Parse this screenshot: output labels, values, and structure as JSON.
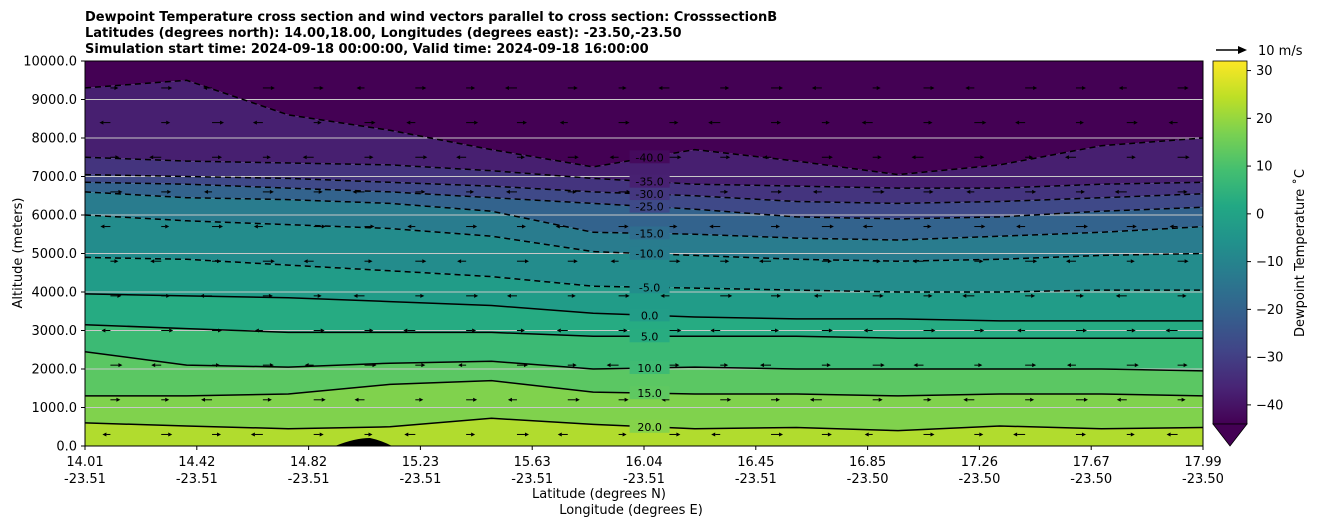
{
  "chart_data": {
    "type": "heatmap",
    "subtype": "filled-contour cross section with contour lines and wind vectors",
    "title_lines": [
      "Dewpoint Temperature cross section and wind vectors parallel to cross section: CrosssectionB",
      "Latitudes (degrees north): 14.00,18.00, Longitudes (degrees east): -23.50,-23.50",
      "Simulation start time: 2024-09-18 00:00:00, Valid time: 2024-09-18 16:00:00"
    ],
    "ylabel": "Altitude (meters)",
    "xlabel_lines": [
      "Latitude (degrees N)",
      "Longitude (degrees E)"
    ],
    "colorbar_label": "Dewpoint Temperature ˚C",
    "quiver_key_label": "10 m/s",
    "ylim": [
      0,
      10000
    ],
    "yticks": [
      "0.0",
      "1000.0",
      "2000.0",
      "3000.0",
      "4000.0",
      "5000.0",
      "6000.0",
      "7000.0",
      "8000.0",
      "9000.0",
      "10000.0"
    ],
    "xlim": [
      0,
      1
    ],
    "xticks": [
      {
        "pos": 0.0,
        "lat": "14.01",
        "lon": "-23.51"
      },
      {
        "pos": 0.1,
        "lat": "14.42",
        "lon": "-23.51"
      },
      {
        "pos": 0.2,
        "lat": "14.82",
        "lon": "-23.51"
      },
      {
        "pos": 0.3,
        "lat": "15.23",
        "lon": "-23.51"
      },
      {
        "pos": 0.4,
        "lat": "15.63",
        "lon": "-23.51"
      },
      {
        "pos": 0.5,
        "lat": "16.04",
        "lon": "-23.51"
      },
      {
        "pos": 0.6,
        "lat": "16.45",
        "lon": "-23.51"
      },
      {
        "pos": 0.7,
        "lat": "16.85",
        "lon": "-23.50"
      },
      {
        "pos": 0.8,
        "lat": "17.26",
        "lon": "-23.50"
      },
      {
        "pos": 0.9,
        "lat": "17.67",
        "lon": "-23.50"
      },
      {
        "pos": 1.0,
        "lat": "17.99",
        "lon": "-23.50"
      }
    ],
    "colorbar_range": [
      -44,
      32
    ],
    "colorbar_ticks": [
      "30",
      "20",
      "10",
      "0",
      "−10",
      "−20",
      "−30",
      "−40"
    ],
    "colorbar_tick_values": [
      30,
      20,
      10,
      0,
      -10,
      -20,
      -30,
      -40
    ],
    "colormap_stops": [
      "#440154",
      "#482475",
      "#414487",
      "#355f8d",
      "#2a788e",
      "#21918c",
      "#22a884",
      "#44bf70",
      "#7ad151",
      "#bddf26",
      "#fde725"
    ],
    "grid": "horizontal",
    "contours": [
      {
        "level": 20,
        "label": "20.0",
        "style": "solid",
        "heights": [
          600,
          520,
          450,
          500,
          720,
          560,
          450,
          480,
          400,
          520,
          450,
          480
        ]
      },
      {
        "level": 15,
        "label": "15.0",
        "style": "solid",
        "heights": [
          1300,
          1300,
          1350,
          1600,
          1700,
          1400,
          1350,
          1350,
          1300,
          1350,
          1350,
          1300
        ]
      },
      {
        "level": 10,
        "label": "10.0",
        "style": "solid",
        "heights": [
          2450,
          2100,
          2050,
          2150,
          2200,
          2000,
          2050,
          2000,
          2000,
          2000,
          2000,
          1950
        ]
      },
      {
        "level": 5,
        "label": "5.0",
        "style": "solid",
        "heights": [
          3150,
          3050,
          2950,
          2950,
          2950,
          2850,
          2850,
          2850,
          2800,
          2800,
          2800,
          2800
        ]
      },
      {
        "level": 0,
        "label": "0.0",
        "style": "solid",
        "heights": [
          3950,
          3900,
          3850,
          3750,
          3650,
          3450,
          3350,
          3300,
          3300,
          3250,
          3250,
          3250
        ]
      },
      {
        "level": -5,
        "label": "-5.0",
        "style": "dashed",
        "heights": [
          4900,
          4850,
          4700,
          4550,
          4400,
          4150,
          4100,
          4050,
          4000,
          4000,
          4050,
          4050
        ]
      },
      {
        "level": -10,
        "label": "-10.0",
        "style": "dashed",
        "heights": [
          6000,
          5850,
          5750,
          5650,
          5450,
          5050,
          4950,
          4850,
          4800,
          4850,
          4950,
          5000
        ]
      },
      {
        "level": -15,
        "label": "-15.0",
        "style": "dashed",
        "heights": [
          6600,
          6450,
          6400,
          6300,
          6100,
          5550,
          5500,
          5400,
          5350,
          5450,
          5550,
          5700
        ]
      },
      {
        "level": -25,
        "label": "-25.0",
        "style": "dashed",
        "heights": [
          6850,
          6800,
          6700,
          6600,
          6450,
          6300,
          6150,
          5950,
          5900,
          5950,
          6100,
          6200
        ]
      },
      {
        "level": -30,
        "label": "-30.0",
        "style": "dashed",
        "heights": [
          7050,
          7000,
          6950,
          6850,
          6750,
          6600,
          6500,
          6350,
          6300,
          6350,
          6450,
          6550
        ]
      },
      {
        "level": -35,
        "label": "-35.0",
        "style": "dashed",
        "heights": [
          7500,
          7400,
          7350,
          7300,
          7150,
          6950,
          6800,
          6750,
          6700,
          6700,
          6800,
          6850
        ]
      },
      {
        "level": -40,
        "label": "-40.0",
        "style": "dashed",
        "heights": [
          9300,
          9500,
          8600,
          8200,
          7700,
          7250,
          7700,
          7400,
          7050,
          7300,
          7800,
          8000
        ]
      }
    ]
  }
}
